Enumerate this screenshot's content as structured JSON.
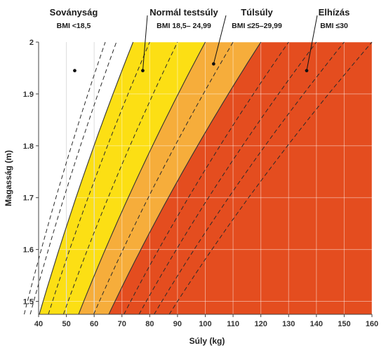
{
  "chart_data": {
    "type": "area",
    "xlabel": "Súly (kg)",
    "ylabel": "Magasság (m)",
    "xlim": [
      40,
      160
    ],
    "ylim": [
      1.475,
      2.0
    ],
    "x_ticks": [
      "40",
      "50",
      "60",
      "70",
      "80",
      "90",
      "100",
      "110",
      "120",
      "130",
      "140",
      "150",
      "160"
    ],
    "y_ticks": [
      "1.5",
      "1.6",
      "1.7",
      "1.8",
      "1.9",
      "2"
    ],
    "grid": true,
    "categories": [
      {
        "name": "Soványság",
        "range_label": "BMI <18,5",
        "bmi_max": 18.5,
        "color": "#ffffff",
        "marker": {
          "x": 53,
          "y": 1.945
        }
      },
      {
        "name": "Normál testsúly",
        "range_label_prefix": "BMI",
        "range_label": "18,5– 24,99",
        "bmi_min": 18.5,
        "bmi_max": 25,
        "color": "#fcdf14",
        "marker": {
          "x": 77.5,
          "y": 1.945
        }
      },
      {
        "name": "Túlsúly",
        "range_label_prefix": "BMI",
        "range_label": "≤25–29,99",
        "bmi_min": 25,
        "bmi_max": 30,
        "color": "#f6ad3b",
        "marker": {
          "x": 103,
          "y": 1.958
        }
      },
      {
        "name": "Elhízás",
        "range_label_prefix": "BMI",
        "range_label": "≤30",
        "bmi_min": 30,
        "color": "#e44d1f",
        "marker": {
          "x": 136.5,
          "y": 1.945
        }
      }
    ],
    "reference_lines_bmi": [
      16,
      17,
      20,
      22.5,
      27.5,
      32.5,
      35,
      37.5,
      40
    ]
  }
}
